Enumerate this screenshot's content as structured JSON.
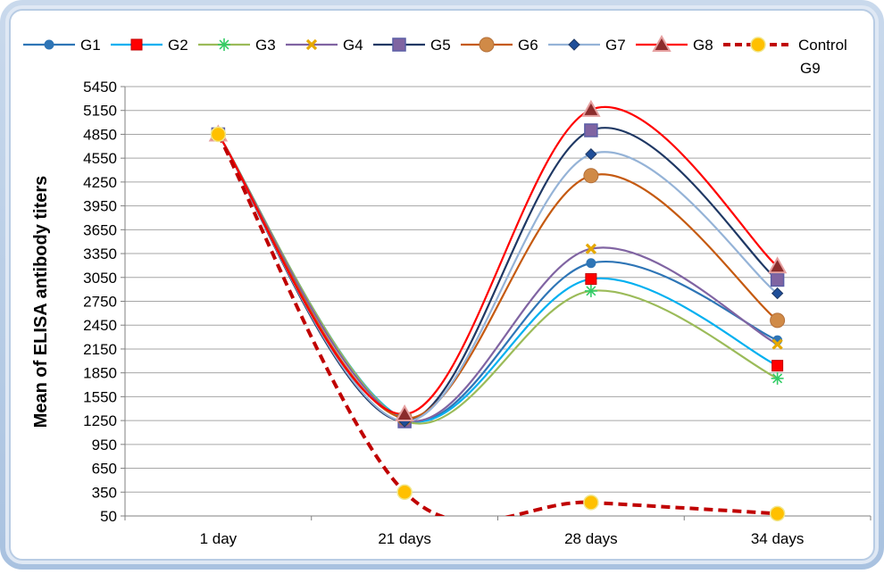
{
  "chart_data": {
    "type": "line",
    "ylabel": "Mean of ELISA antibody titers",
    "xlabel": "",
    "categories": [
      "1 day",
      "21 days",
      "28 days",
      "34 days"
    ],
    "ylim": [
      50,
      5450
    ],
    "yticks": [
      50,
      350,
      650,
      950,
      1250,
      1550,
      1850,
      2150,
      2450,
      2750,
      3050,
      3350,
      3650,
      3950,
      4250,
      4550,
      4850,
      5150,
      5450
    ],
    "grid": true,
    "legend_position": "top",
    "series": [
      {
        "name": "G1",
        "values": [
          4850,
          1260,
          3230,
          2260
        ],
        "color": "#2e75b6",
        "marker": "circle",
        "dashed": false
      },
      {
        "name": "G2",
        "values": [
          4850,
          1270,
          3030,
          1940
        ],
        "color": "#00b0f0",
        "marker": "square-red",
        "dashed": false
      },
      {
        "name": "G3",
        "values": [
          4850,
          1250,
          2880,
          1780
        ],
        "color": "#9bbb59",
        "marker": "star",
        "dashed": false
      },
      {
        "name": "G4",
        "values": [
          4850,
          1260,
          3410,
          2210
        ],
        "color": "#8064a2",
        "marker": "x-cross",
        "dashed": false
      },
      {
        "name": "G5",
        "values": [
          4850,
          1240,
          4900,
          3020
        ],
        "color": "#1f3864",
        "marker": "square",
        "dashed": false
      },
      {
        "name": "G6",
        "values": [
          4850,
          1280,
          4330,
          2510
        ],
        "color": "#c55a11",
        "marker": "circle-orange",
        "dashed": false
      },
      {
        "name": "G7",
        "values": [
          4850,
          1240,
          4600,
          2850
        ],
        "color": "#95b3d7",
        "marker": "diamond",
        "dashed": false
      },
      {
        "name": "G8",
        "values": [
          4850,
          1330,
          5160,
          3190
        ],
        "color": "#ff0000",
        "marker": "triangle",
        "dashed": false
      },
      {
        "name": "Control G9",
        "values": [
          4850,
          350,
          220,
          80
        ],
        "color": "#c00000",
        "marker": "circle-yellow",
        "dashed": true
      }
    ]
  }
}
